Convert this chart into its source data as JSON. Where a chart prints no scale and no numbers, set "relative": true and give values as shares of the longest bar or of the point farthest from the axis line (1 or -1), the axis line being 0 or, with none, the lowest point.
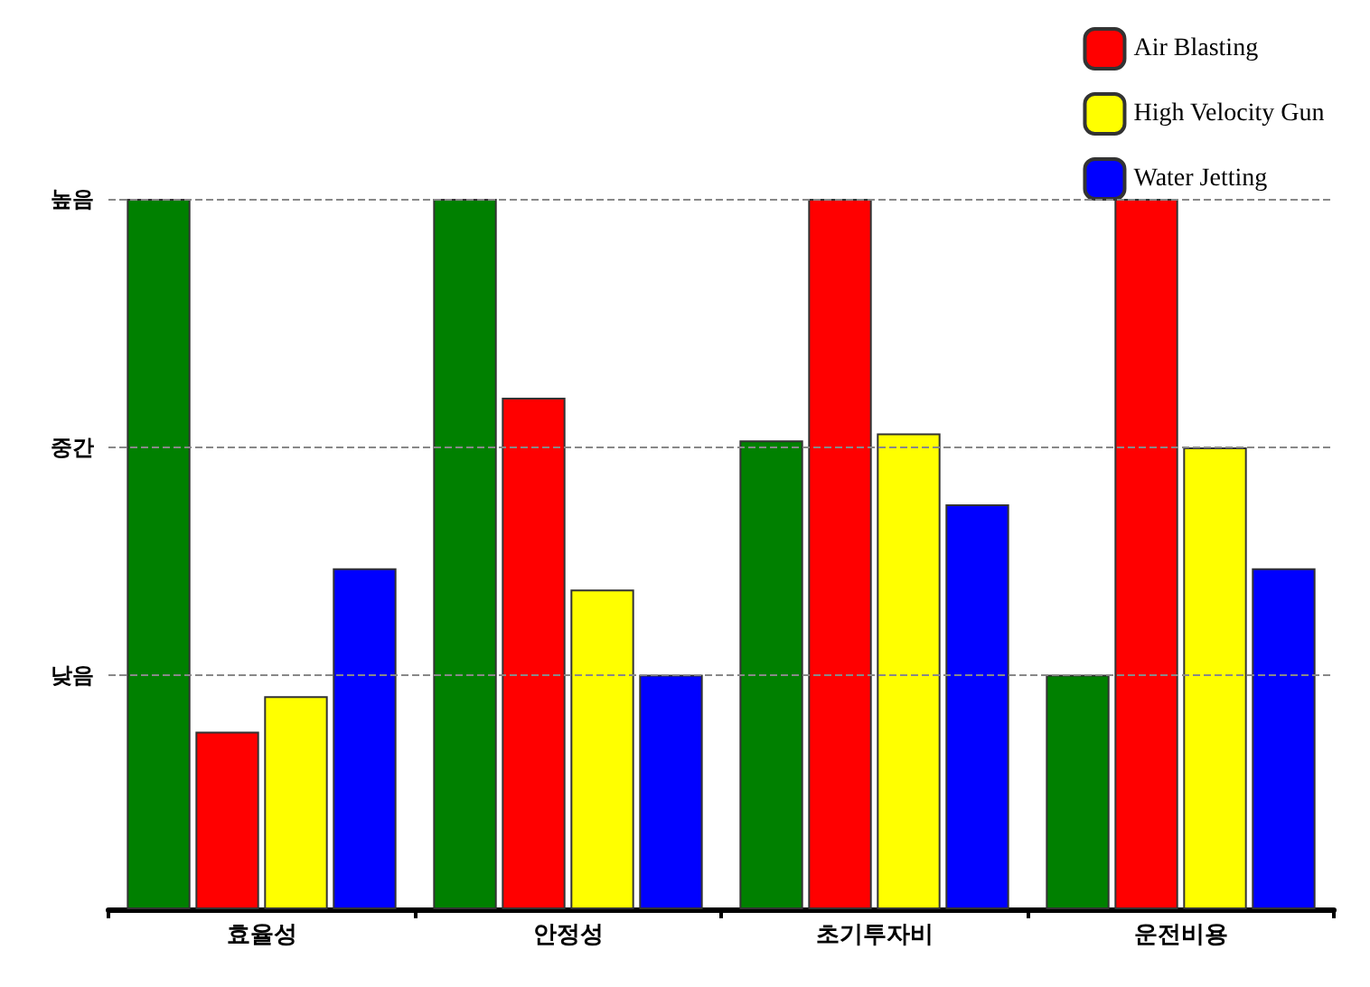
{
  "chart_data": {
    "type": "bar",
    "relative": true,
    "categories": [
      "효율성",
      "안정성",
      "초기투자비",
      "운전비용"
    ],
    "series": [
      {
        "color": "#008000",
        "values": [
          1,
          1,
          0.66,
          0.33
        ]
      },
      {
        "name": "Air Blasting",
        "color": "#ff0000",
        "values": [
          0.25,
          0.72,
          1,
          1
        ]
      },
      {
        "name": "High Velocity Gun",
        "color": "#ffff00",
        "values": [
          0.3,
          0.45,
          0.67,
          0.65
        ]
      },
      {
        "name": "Water Jetting",
        "color": "#0000ff",
        "values": [
          0.48,
          0.33,
          0.57,
          0.48
        ]
      }
    ],
    "ref_lines": [
      {
        "axis": "y",
        "value": 0.33,
        "label": "낮음",
        "color": "#888888",
        "line_style": "dashed"
      },
      {
        "axis": "y",
        "value": 0.65,
        "label": "중간",
        "color": "#888888",
        "line_style": "dashed"
      },
      {
        "axis": "y",
        "value": 1,
        "label": "높음",
        "color": "#888888",
        "line_style": "dashed"
      }
    ],
    "legend": "top right"
  }
}
